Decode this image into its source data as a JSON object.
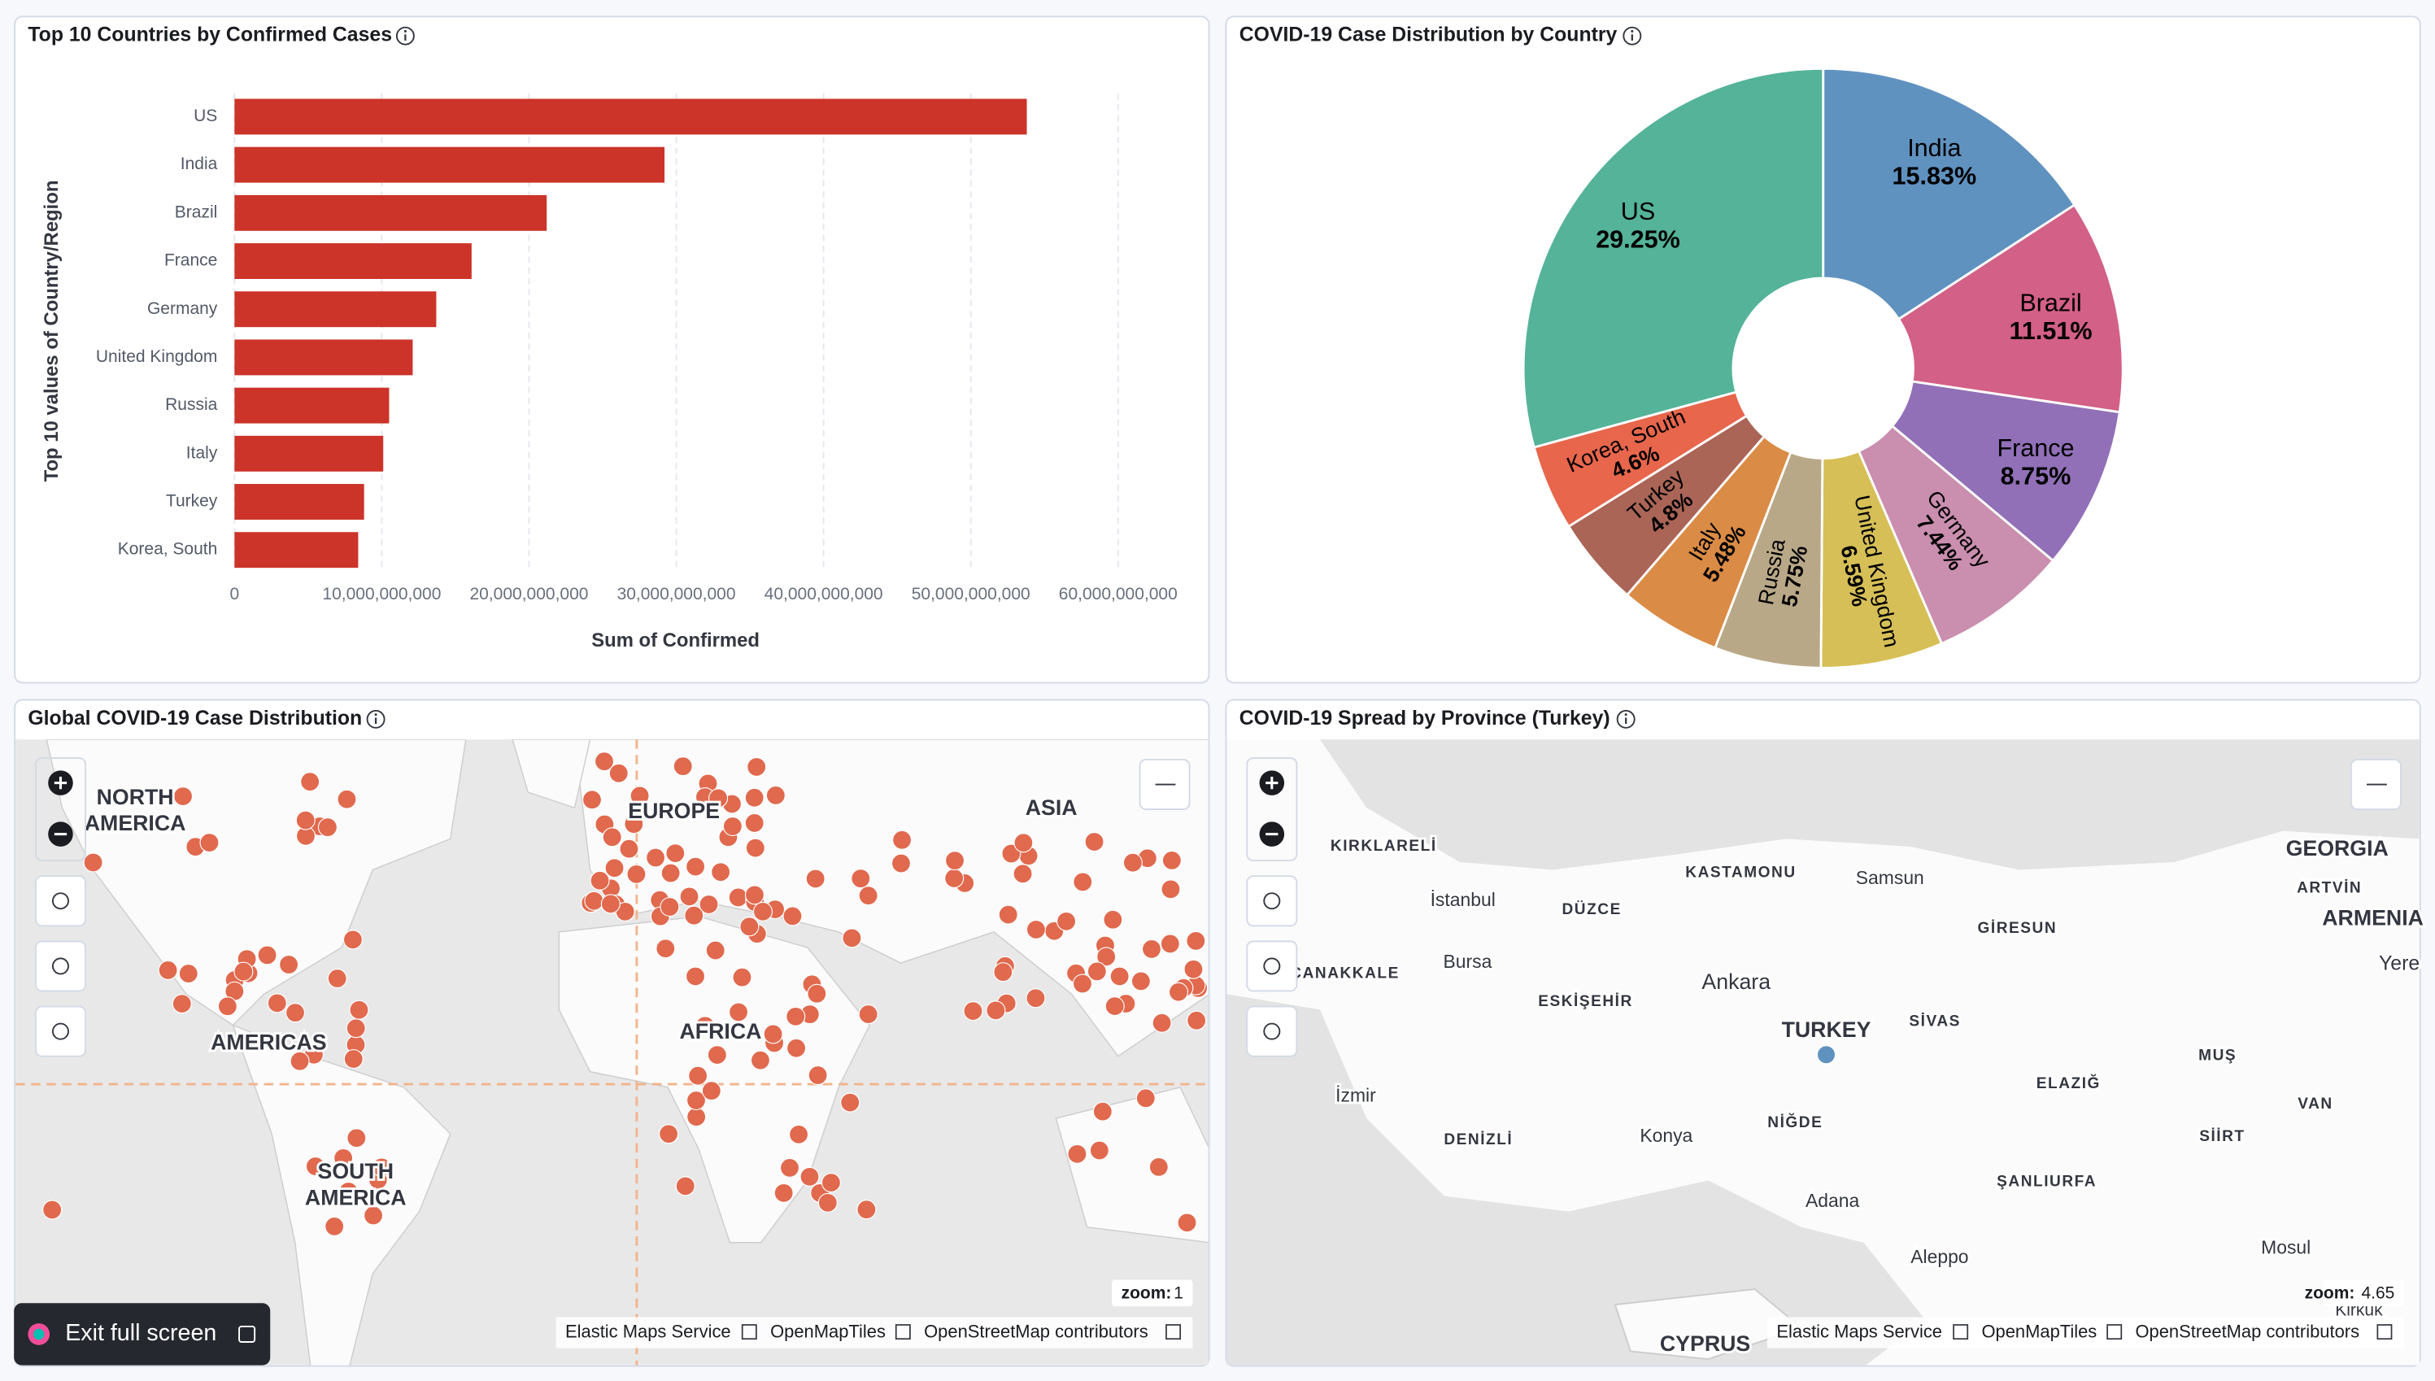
{
  "chart_data": [
    {
      "type": "bar",
      "orientation": "horizontal",
      "title": "Top 10 Countries by Confirmed Cases",
      "x_label": "Sum of Confirmed",
      "y_label": "Top 10 values of Country/Region",
      "categories": [
        "US",
        "India",
        "Brazil",
        "France",
        "Germany",
        "United Kingdom",
        "Russia",
        "Italy",
        "Turkey",
        "Korea, South"
      ],
      "values": [
        53800000000,
        29200000000,
        21200000000,
        16100000000,
        13700000000,
        12100000000,
        10500000000,
        10100000000,
        8800000000,
        8400000000
      ],
      "color": "#cc3329",
      "xlim": [
        0,
        60000000000
      ],
      "xticks": [
        0,
        {
          "value": 10000000000,
          "label": "10,000,000,000"
        },
        {
          "value": 20000000000,
          "label": "20,000,000,000"
        },
        {
          "value": 30000000000,
          "label": "30,000,000,000"
        },
        {
          "value": 40000000000,
          "label": "40,000,000,000"
        },
        {
          "value": 50000000000,
          "label": "50,000,000,000"
        },
        {
          "value": 60000000000,
          "label": "60,000,000,000"
        }
      ],
      "grid": true
    },
    {
      "type": "pie",
      "title": "COVID-19 Case Distribution by Country",
      "categories": [
        "India",
        "Brazil",
        "France",
        "Germany",
        "United Kingdom",
        "Russia",
        "Italy",
        "Turkey",
        "Korea, South",
        "US"
      ],
      "values": [
        15.83,
        11.51,
        8.75,
        7.44,
        6.59,
        5.75,
        5.48,
        4.8,
        4.6,
        29.25
      ],
      "value_labels": [
        "15.83%",
        "11.51%",
        "8.75%",
        "7.44%",
        "6.59%",
        "5.75%",
        "5.48%",
        "4.8%",
        "4.6%",
        "29.25%"
      ],
      "colors": [
        "#6092c0",
        "#d36086",
        "#9170b8",
        "#ca8eae",
        "#d6bf57",
        "#b9a888",
        "#da8b45",
        "#aa6556",
        "#e7664c",
        "#54b399"
      ]
    }
  ],
  "maps": [
    {
      "title": "Global COVID-19 Case Distribution",
      "labels": [
        "NORTH",
        "AMERICA",
        "EUROPE",
        "ASIA",
        "AMERICAS",
        "AFRICA",
        "SOUTH",
        "AMERICA"
      ],
      "zoom_label": "zoom:",
      "zoom": 1,
      "attribution": [
        "Elastic Maps Service",
        "OpenMapTiles",
        "OpenStreetMap contributors"
      ]
    },
    {
      "title": "COVID-19 Spread by Province (Turkey)",
      "labels": [
        "KIRKLARELİ",
        "İstanbul",
        "DÜZCE",
        "KASTAMONU",
        "Samsun",
        "GEORGIA",
        "ARTVİN",
        "GİRESUN",
        "ARMENIA",
        "Yere",
        "ÇANAKKALE",
        "Bursa",
        "ESKİŞEHİR",
        "Ankara",
        "TURKEY",
        "SİVAS",
        "MUŞ",
        "ELAZIĞ",
        "VAN",
        "İzmir",
        "NİĞDE",
        "SİİRT",
        "DENİZLİ",
        "Konya",
        "ŞANLIURFA",
        "Adana",
        "Mosul",
        "Aleppo",
        "Kirkuk",
        "CYPRUS"
      ],
      "zoom_label": "zoom:",
      "zoom": 4.65,
      "attribution": [
        "Elastic Maps Service",
        "OpenMapTiles",
        "OpenStreetMap contributors"
      ]
    }
  ],
  "exit_button": "Exit full screen"
}
